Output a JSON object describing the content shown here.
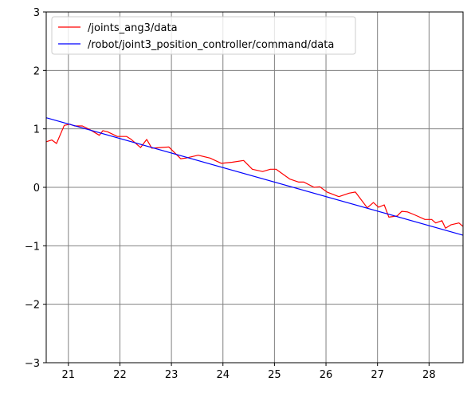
{
  "chart_data": {
    "type": "line",
    "title": "",
    "xlabel": "",
    "ylabel": "",
    "xlim": [
      20.57,
      28.66
    ],
    "ylim": [
      -3,
      3
    ],
    "xticks": [
      21,
      22,
      23,
      24,
      25,
      26,
      27,
      28
    ],
    "xtick_labels": [
      "21",
      "22",
      "23",
      "24",
      "25",
      "26",
      "27",
      "28"
    ],
    "yticks": [
      -3,
      -2,
      -1,
      0,
      1,
      2,
      3
    ],
    "ytick_labels": [
      "−3",
      "−2",
      "−1",
      "0",
      "1",
      "2",
      "3"
    ],
    "grid": true,
    "grid_color": "#808080",
    "legend_placement": "top-left",
    "series": [
      {
        "name": "/joints_ang3/data",
        "color": "#ff0000",
        "x": [
          20.57,
          20.68,
          20.77,
          20.92,
          21.03,
          21.12,
          21.27,
          21.43,
          21.6,
          21.67,
          21.76,
          21.95,
          22.13,
          22.22,
          22.4,
          22.52,
          22.62,
          22.95,
          23.18,
          23.28,
          23.52,
          23.75,
          23.97,
          24.18,
          24.4,
          24.57,
          24.77,
          24.92,
          25.03,
          25.3,
          25.47,
          25.57,
          25.77,
          25.88,
          26.02,
          26.25,
          26.45,
          26.57,
          26.8,
          26.92,
          27.02,
          27.13,
          27.22,
          27.38,
          27.47,
          27.58,
          27.72,
          27.92,
          28.05,
          28.13,
          28.25,
          28.32,
          28.43,
          28.58,
          28.66
        ],
        "y": [
          0.78,
          0.81,
          0.75,
          1.06,
          1.08,
          1.05,
          1.05,
          0.98,
          0.89,
          0.97,
          0.95,
          0.87,
          0.87,
          0.82,
          0.68,
          0.82,
          0.67,
          0.69,
          0.49,
          0.5,
          0.55,
          0.5,
          0.41,
          0.43,
          0.46,
          0.31,
          0.27,
          0.31,
          0.31,
          0.14,
          0.09,
          0.09,
          0.0,
          0.01,
          -0.08,
          -0.16,
          -0.1,
          -0.08,
          -0.35,
          -0.26,
          -0.34,
          -0.3,
          -0.51,
          -0.49,
          -0.41,
          -0.42,
          -0.47,
          -0.55,
          -0.55,
          -0.61,
          -0.57,
          -0.7,
          -0.64,
          -0.61,
          -0.67
        ]
      },
      {
        "name": "/robot/joint3_position_controller/command/data",
        "color": "#0000ff",
        "x": [
          20.57,
          28.66
        ],
        "y": [
          1.19,
          -0.82
        ]
      }
    ]
  }
}
